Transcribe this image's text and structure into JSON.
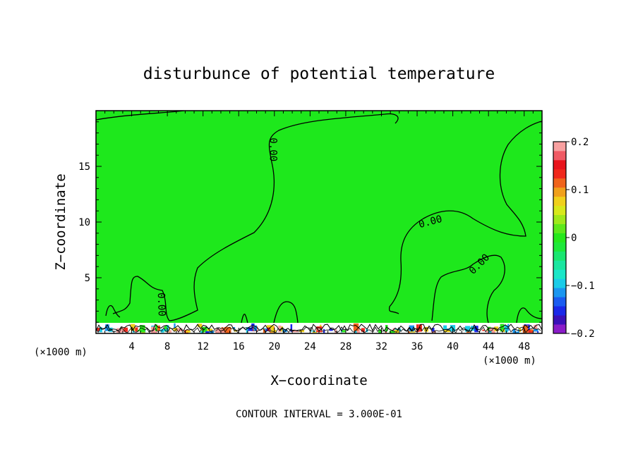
{
  "chart_data": {
    "type": "heatmap",
    "title": "disturbunce of potential temperature",
    "xlabel": "X−coordinate",
    "ylabel": "Z−coordinate",
    "x_unit": "(×1000 m)",
    "z_unit": "(×1000 m)",
    "xlim": [
      0,
      50
    ],
    "ylim": [
      0,
      20
    ],
    "x_ticks": [
      4,
      8,
      12,
      16,
      20,
      24,
      28,
      32,
      36,
      40,
      44,
      48
    ],
    "y_ticks": [
      5,
      10,
      15
    ],
    "colorbar": {
      "range": [
        -0.2,
        0.2
      ],
      "ticks": [
        {
          "value": 0.2,
          "label": "0.2"
        },
        {
          "value": 0.1,
          "label": "0.1"
        },
        {
          "value": 0.0,
          "label": "0"
        },
        {
          "value": -0.1,
          "label": "−0.1"
        },
        {
          "value": -0.2,
          "label": "−0.2"
        }
      ],
      "colors": [
        "#8a1cc8",
        "#3a10b8",
        "#1a28e8",
        "#1a5cf0",
        "#1a96f0",
        "#1acce8",
        "#1ae6c8",
        "#1ae6a0",
        "#1ae670",
        "#1ee83a",
        "#26e81c",
        "#5ee81c",
        "#a0e81c",
        "#d8e81c",
        "#f0d01c",
        "#f0a01c",
        "#f0641c",
        "#f0281c",
        "#e8141c",
        "#f05a64",
        "#f8a0a0"
      ]
    },
    "contour_labels": [
      {
        "text": "0.00",
        "x": 19.8,
        "z": 16.5,
        "angle": 90
      },
      {
        "text": "0.00",
        "x": 37.5,
        "z": 10.0,
        "angle": -15
      },
      {
        "text": "0.00",
        "x": 43.0,
        "z": 6.2,
        "angle": -45
      },
      {
        "text": "0.00",
        "x": 7.3,
        "z": 2.6,
        "angle": 88
      }
    ],
    "contour_interval_note": "CONTOUR INTERVAL = 3.000E-01"
  }
}
